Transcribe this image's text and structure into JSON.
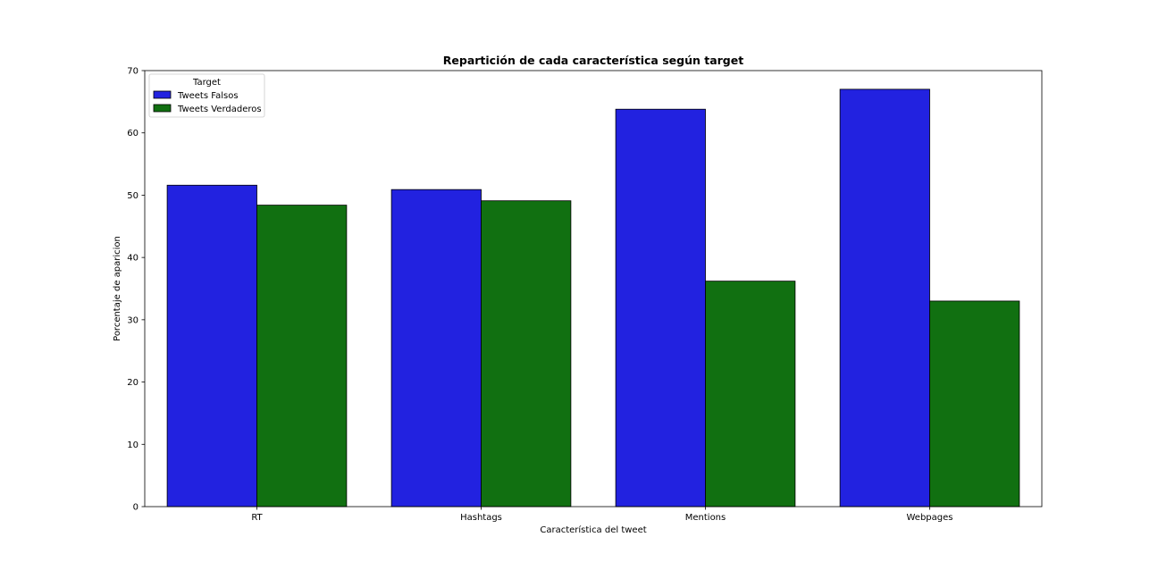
{
  "chart_data": {
    "type": "bar",
    "title": "Repartición de cada característica según target",
    "xlabel": "Característica del tweet",
    "ylabel": "Porcentaje de aparicion",
    "categories": [
      "RT",
      "Hashtags",
      "Mentions",
      "Webpages"
    ],
    "series": [
      {
        "name": "Tweets Falsos",
        "color": "#2222e0",
        "values": [
          51.6,
          50.9,
          63.8,
          67.0
        ]
      },
      {
        "name": "Tweets Verdaderos",
        "color": "#117011",
        "values": [
          48.4,
          49.1,
          36.2,
          33.0
        ]
      }
    ],
    "ylim": [
      0,
      70
    ],
    "yticks": [
      0,
      10,
      20,
      30,
      40,
      50,
      60,
      70
    ],
    "grid": false,
    "legend": {
      "title": "Target",
      "placement": "upper-left"
    }
  }
}
